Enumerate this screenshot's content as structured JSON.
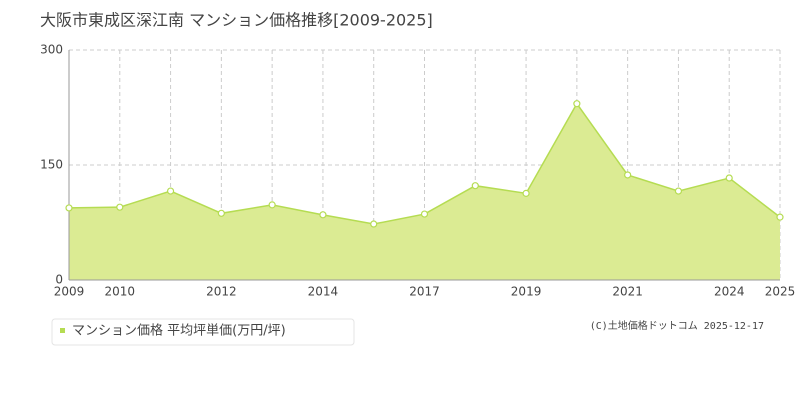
{
  "chart_data": {
    "type": "area",
    "title": "大阪市東成区深江南 マンション価格推移[2009-2025]",
    "categories": [
      "2009",
      "2010",
      null,
      "2012",
      null,
      "2014",
      null,
      "2017",
      null,
      "2019",
      null,
      "2021",
      null,
      "2024",
      "2025"
    ],
    "series": [
      {
        "name": "マンション価格 平均坪単価(万円/坪)",
        "color": "#b5dc52",
        "values": [
          94,
          95,
          116,
          87,
          98,
          85,
          73,
          86,
          123,
          113,
          230,
          137,
          116,
          133,
          82
        ]
      }
    ],
    "ylim": [
      0,
      300
    ],
    "yticks": [
      0,
      150,
      300
    ],
    "grid": true,
    "copyright": "(C)土地価格ドットコム 2025-12-17"
  }
}
